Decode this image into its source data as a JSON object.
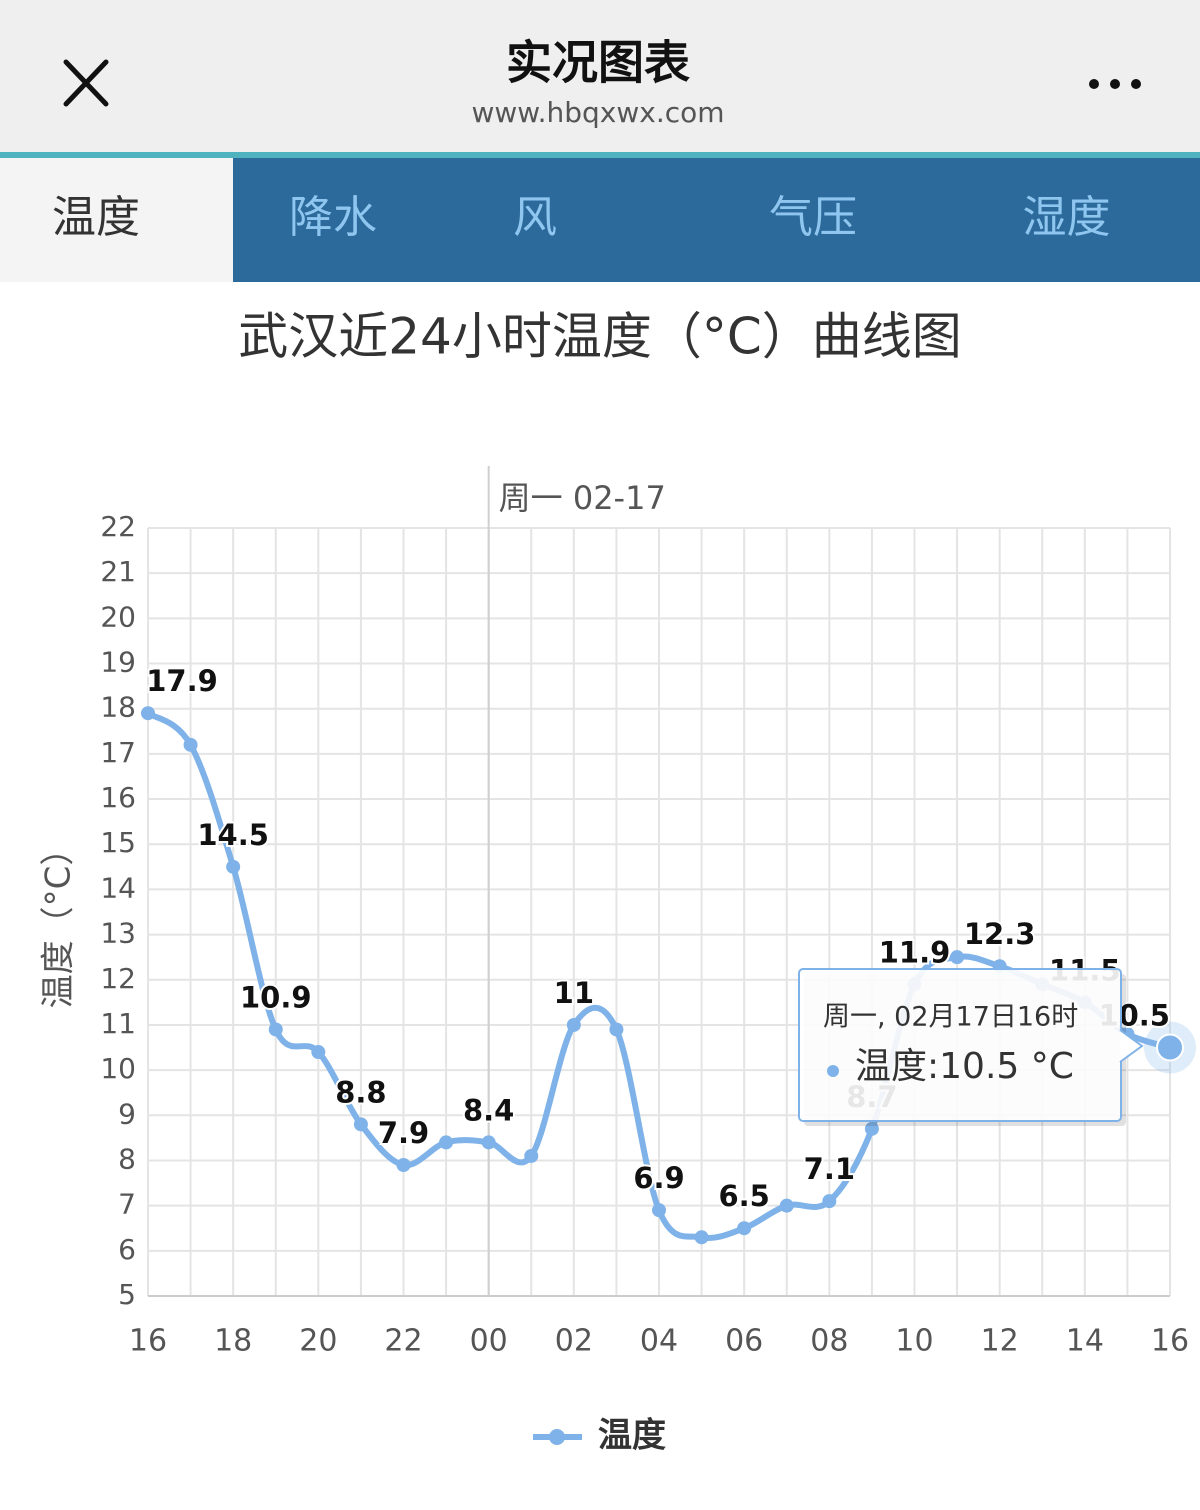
{
  "header": {
    "title": "实况图表",
    "url": "www.hbqxwx.com"
  },
  "tabs": [
    "温度",
    "降水",
    "风",
    "气压",
    "湿度"
  ],
  "active_tab": 0,
  "chart_data": {
    "type": "line",
    "title": "武汉近24小时温度（°C）曲线图",
    "day_label": "周一 02-17",
    "y_label": "温度（°C）",
    "categories": [
      "16",
      null,
      "18",
      null,
      "20",
      null,
      "22",
      null,
      "00",
      null,
      "02",
      null,
      "04",
      null,
      "06",
      null,
      "08",
      null,
      "10",
      null,
      "12",
      null,
      "14",
      null,
      "16"
    ],
    "series": [
      {
        "name": "温度",
        "color": "#7fb2e8",
        "values": [
          17.9,
          17.2,
          14.5,
          10.9,
          10.4,
          8.8,
          7.9,
          8.4,
          8.4,
          8.1,
          11,
          10.9,
          6.9,
          6.3,
          6.5,
          7.0,
          7.1,
          8.7,
          11.9,
          12.5,
          12.3,
          11.9,
          11.5,
          10.8,
          10.5
        ],
        "value_labels": [
          "17.9",
          null,
          "14.5",
          "10.9",
          null,
          "8.8",
          "7.9",
          null,
          "8.4",
          null,
          "11",
          null,
          "6.9",
          null,
          "6.5",
          null,
          "7.1",
          "8.7",
          "11.9",
          null,
          "12.3",
          null,
          "11.5",
          null,
          "10.5"
        ]
      }
    ],
    "ylim": [
      5,
      22
    ],
    "yticks": [
      5,
      6,
      7,
      8,
      9,
      10,
      11,
      12,
      13,
      14,
      15,
      16,
      17,
      18,
      19,
      20,
      21,
      22
    ],
    "grid": true,
    "legend": "bottom",
    "tooltip": {
      "title": "周一, 02月17日16时",
      "text": "温度:10.5 °C"
    }
  }
}
